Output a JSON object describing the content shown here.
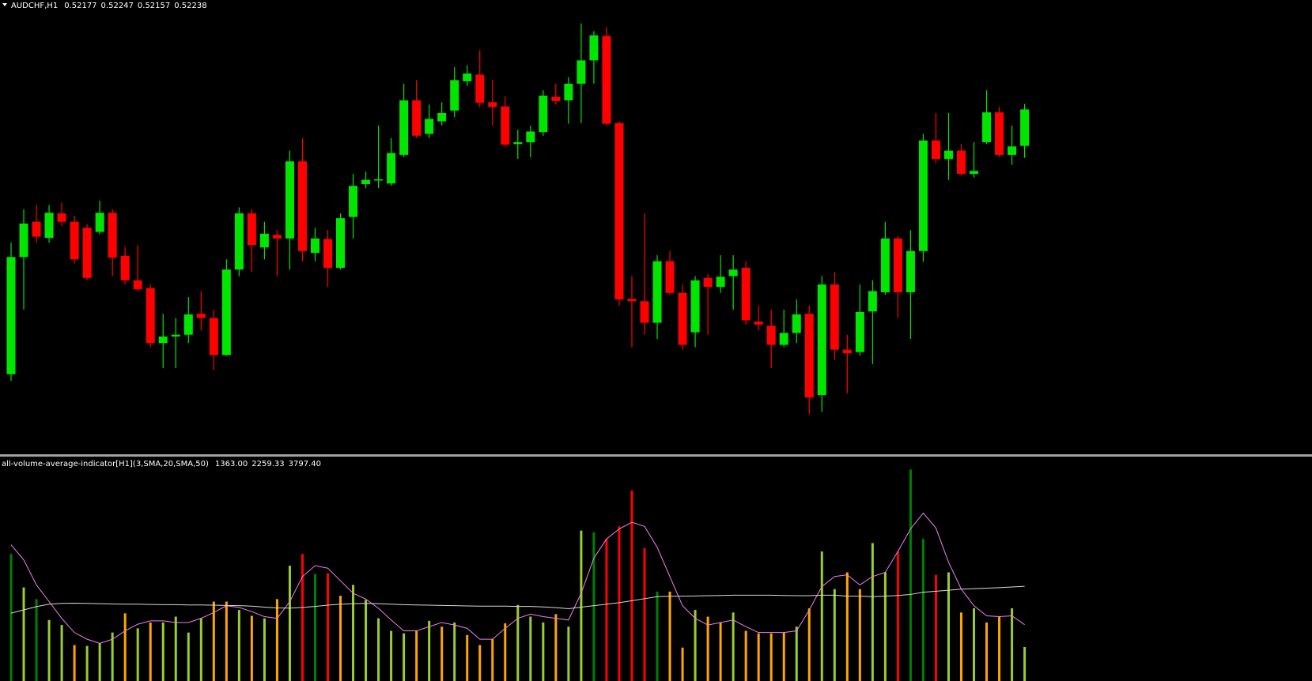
{
  "chart_data": [
    {
      "type": "candlestick",
      "title": "AUDCHF,H1",
      "up_color": "#00e600",
      "down_color": "#ff0000",
      "ylim": [
        0.51661,
        0.52421
      ],
      "open": [
        0.51795,
        0.51991,
        0.5205,
        0.52023,
        0.52064,
        0.5205,
        0.5204,
        0.52033,
        0.52065,
        0.51993,
        0.51952,
        0.51939,
        0.51847,
        0.51858,
        0.51861,
        0.51896,
        0.51889,
        0.51827,
        0.5197,
        0.52064,
        0.52007,
        0.52028,
        0.52022,
        0.52151,
        0.51998,
        0.52021,
        0.51973,
        0.52058,
        0.52113,
        0.52119,
        0.52114,
        0.52162,
        0.52253,
        0.52197,
        0.52218,
        0.52236,
        0.52285,
        0.52296,
        0.5225,
        0.52243,
        0.5218,
        0.52183,
        0.522,
        0.52259,
        0.52253,
        0.52281,
        0.5232,
        0.52361,
        0.52215,
        0.51921,
        0.51917,
        0.51881,
        0.51984,
        0.51931,
        0.51865,
        0.51956,
        0.51941,
        0.51959,
        0.51973,
        0.51883,
        0.51876,
        0.51844,
        0.51864,
        0.51896,
        0.5176,
        0.51945,
        0.51836,
        0.51832,
        0.519,
        0.51932,
        0.52022,
        0.51932,
        0.52001,
        0.52186,
        0.52155,
        0.52169,
        0.5213,
        0.52183,
        0.52233,
        0.52162,
        0.52177
      ],
      "high": [
        0.52015,
        0.52071,
        0.52078,
        0.52078,
        0.52082,
        0.5206,
        0.52046,
        0.52085,
        0.52071,
        0.52008,
        0.52011,
        0.51945,
        0.51896,
        0.51889,
        0.51924,
        0.51934,
        0.51903,
        0.51987,
        0.52074,
        0.52071,
        0.5205,
        0.52036,
        0.52169,
        0.5219,
        0.5204,
        0.52036,
        0.52064,
        0.5213,
        0.52134,
        0.52211,
        0.5219,
        0.52281,
        0.52287,
        0.52246,
        0.5225,
        0.52309,
        0.52312,
        0.52337,
        0.52288,
        0.5226,
        0.52204,
        0.52211,
        0.5227,
        0.52281,
        0.52292,
        0.52382,
        0.52369,
        0.52376,
        0.52218,
        0.51959,
        0.52064,
        0.51994,
        0.52001,
        0.51945,
        0.51959,
        0.51962,
        0.51994,
        0.51994,
        0.51984,
        0.5191,
        0.51903,
        0.51903,
        0.5192,
        0.5191,
        0.51959,
        0.51966,
        0.51861,
        0.51945,
        0.51952,
        0.5205,
        0.52026,
        0.52036,
        0.52197,
        0.52232,
        0.52232,
        0.5218,
        0.52183,
        0.5227,
        0.52242,
        0.52211,
        0.52247
      ],
      "low": [
        0.51784,
        0.51903,
        0.52015,
        0.52015,
        0.52043,
        0.5198,
        0.51952,
        0.52029,
        0.51959,
        0.51945,
        0.51934,
        0.5184,
        0.51805,
        0.51805,
        0.51847,
        0.51868,
        0.51802,
        0.51826,
        0.51959,
        0.51966,
        0.51987,
        0.51959,
        0.5197,
        0.51984,
        0.51984,
        0.51941,
        0.5197,
        0.52022,
        0.52106,
        0.52106,
        0.5211,
        0.52158,
        0.5219,
        0.5219,
        0.52211,
        0.52225,
        0.52277,
        0.52242,
        0.52211,
        0.52176,
        0.52155,
        0.52158,
        0.52194,
        0.52246,
        0.52214,
        0.52215,
        0.52281,
        0.52211,
        0.5191,
        0.5184,
        0.51861,
        0.51854,
        0.51928,
        0.51836,
        0.5184,
        0.51861,
        0.51931,
        0.51903,
        0.51878,
        0.51868,
        0.51805,
        0.5184,
        0.51847,
        0.51728,
        0.51732,
        0.51819,
        0.51763,
        0.51826,
        0.51812,
        0.51928,
        0.51889,
        0.51854,
        0.51983,
        0.52148,
        0.5212,
        0.52127,
        0.52124,
        0.5218,
        0.52158,
        0.52145,
        0.52157
      ],
      "close": [
        0.51991,
        0.52047,
        0.52025,
        0.52065,
        0.5205,
        0.51987,
        0.51956,
        0.52065,
        0.5199,
        0.51952,
        0.51937,
        0.51847,
        0.51858,
        0.51861,
        0.51895,
        0.51889,
        0.51827,
        0.5197,
        0.52064,
        0.52011,
        0.5203,
        0.52022,
        0.52151,
        0.52001,
        0.52022,
        0.51973,
        0.52056,
        0.5211,
        0.5212,
        0.52121,
        0.52165,
        0.52253,
        0.52194,
        0.52222,
        0.52232,
        0.52287,
        0.52298,
        0.52249,
        0.52242,
        0.52179,
        0.52183,
        0.52201,
        0.52261,
        0.52252,
        0.52281,
        0.5232,
        0.52362,
        0.52214,
        0.5192,
        0.51917,
        0.51881,
        0.51984,
        0.51931,
        0.51844,
        0.51952,
        0.51941,
        0.51958,
        0.5197,
        0.51885,
        0.51878,
        0.51844,
        0.51864,
        0.51895,
        0.51756,
        0.51945,
        0.51836,
        0.5183,
        0.51899,
        0.51934,
        0.52022,
        0.51932,
        0.52001,
        0.52186,
        0.52155,
        0.52169,
        0.5213,
        0.52135,
        0.52233,
        0.52162,
        0.52176,
        0.52238
      ]
    },
    {
      "type": "volume",
      "title": "all-volume-average-indicator[H1](3,SMA,20,SMA,50)",
      "ylim": [
        0,
        8900
      ],
      "values": [
        5092,
        3752,
        3283,
        2446,
        2245,
        1441,
        1407,
        1508,
        1943,
        2714,
        2111,
        2345,
        2345,
        2580,
        1943,
        2513,
        3183,
        3183,
        2848,
        2613,
        2513,
        3283,
        4623,
        5092,
        4288,
        4322,
        3417,
        3853,
        3250,
        2513,
        2010,
        1910,
        2010,
        2412,
        2178,
        2345,
        1843,
        1441,
        1675,
        2312,
        3049,
        2580,
        2345,
        2680,
        2178,
        6030,
        5963,
        5695,
        6198,
        7638,
        5327,
        3585,
        3585,
        1340,
        2848,
        2580,
        2345,
        2747,
        2010,
        1910,
        1910,
        1943,
        2178,
        2915,
        5193,
        3685,
        4355,
        3685,
        5528,
        4355,
        5193,
        8476,
        5695,
        4255,
        4355,
        2747,
        2915,
        2345,
        2580,
        2915,
        1363
      ],
      "last_value_label": "1363.00",
      "colors": [
        "#008000",
        "#9acd32",
        "#008000",
        "#9acd32",
        "#9acd32",
        "#ffa500",
        "#9acd32",
        "#9acd32",
        "#9acd32",
        "#ffa500",
        "#9acd32",
        "#ffa500",
        "#9acd32",
        "#9acd32",
        "#9acd32",
        "#9acd32",
        "#ffa500",
        "#ffa500",
        "#9acd32",
        "#ffa500",
        "#9acd32",
        "#ffa500",
        "#9acd32",
        "#ff0000",
        "#008000",
        "#ff0000",
        "#ffa500",
        "#9acd32",
        "#9acd32",
        "#9acd32",
        "#9acd32",
        "#9acd32",
        "#ffa500",
        "#9acd32",
        "#ffa500",
        "#9acd32",
        "#ffa500",
        "#ffa500",
        "#ffa500",
        "#ffa500",
        "#9acd32",
        "#9acd32",
        "#9acd32",
        "#ffa500",
        "#9acd32",
        "#9acd32",
        "#008000",
        "#ff0000",
        "#ff0000",
        "#ff0000",
        "#ff0000",
        "#008000",
        "#ffa500",
        "#ffa500",
        "#9acd32",
        "#ffa500",
        "#ffa500",
        "#9acd32",
        "#ffa500",
        "#ffa500",
        "#ffa500",
        "#ffa500",
        "#9acd32",
        "#ffa500",
        "#9acd32",
        "#9acd32",
        "#ffa500",
        "#ffa500",
        "#9acd32",
        "#9acd32",
        "#ff0000",
        "#008000",
        "#008000",
        "#ff0000",
        "#9acd32",
        "#ffa500",
        "#9acd32",
        "#ffa500",
        "#ffa500",
        "#9acd32",
        "#9acd32"
      ],
      "lines": [
        {
          "color": "#ee82ee",
          "last_label": "2259.33",
          "values": [
            5461,
            4858,
            3853,
            3183,
            2513,
            1943,
            1675,
            1508,
            1675,
            2010,
            2278,
            2412,
            2412,
            2345,
            2345,
            2513,
            2747,
            3015,
            2948,
            2781,
            2580,
            2513,
            3183,
            4188,
            4623,
            4523,
            4020,
            3518,
            3283,
            2915,
            2446,
            2010,
            2010,
            2178,
            2345,
            2245,
            2111,
            1675,
            1675,
            2111,
            2513,
            2680,
            2580,
            2513,
            2446,
            3518,
            4925,
            5695,
            6097,
            6365,
            6198,
            5360,
            4188,
            3015,
            2513,
            2245,
            2345,
            2446,
            2178,
            1943,
            1943,
            1943,
            2010,
            2848,
            3786,
            4188,
            4255,
            3853,
            4188,
            4355,
            5193,
            6097,
            6734,
            6131,
            4757,
            3685,
            3015,
            2613,
            2580,
            2613,
            2259.33
          ]
        },
        {
          "color": "#d8d8d8",
          "last_label": "3797.40",
          "values": [
            2720,
            2850,
            2980,
            3080,
            3110,
            3120,
            3110,
            3100,
            3090,
            3080,
            3080,
            3070,
            3060,
            3060,
            3050,
            3050,
            3040,
            3030,
            3020,
            3000,
            2960,
            2930,
            2920,
            2950,
            2990,
            3040,
            3080,
            3100,
            3110,
            3100,
            3080,
            3060,
            3050,
            3040,
            3030,
            3020,
            3010,
            3000,
            3000,
            3000,
            2990,
            2990,
            2970,
            2940,
            2900,
            2960,
            3020,
            3080,
            3140,
            3220,
            3300,
            3380,
            3400,
            3400,
            3410,
            3420,
            3430,
            3440,
            3440,
            3440,
            3440,
            3430,
            3420,
            3420,
            3440,
            3440,
            3400,
            3400,
            3380,
            3400,
            3430,
            3470,
            3560,
            3600,
            3640,
            3680,
            3700,
            3720,
            3740,
            3770,
            3797.4
          ]
        }
      ]
    }
  ]
}
